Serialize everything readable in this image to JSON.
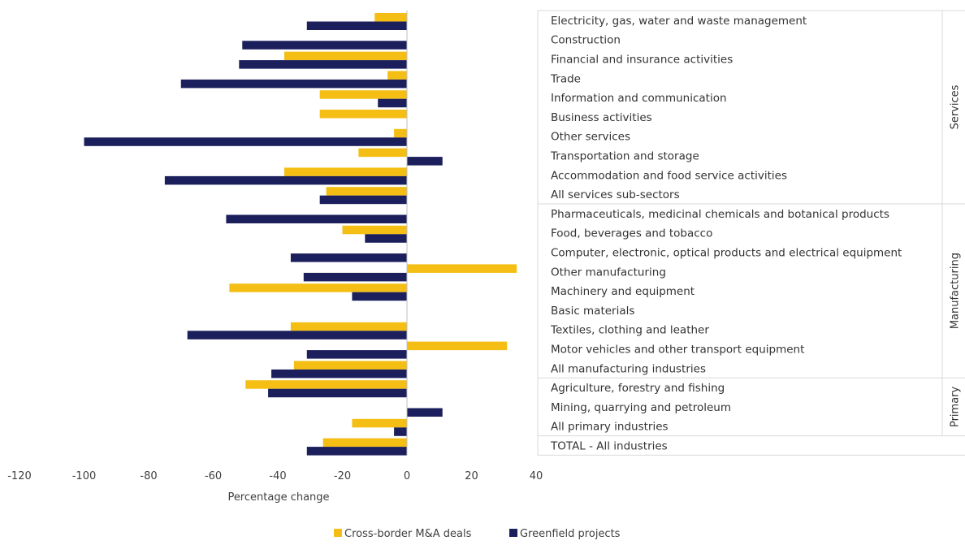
{
  "chart_data": {
    "type": "bar",
    "orientation": "horizontal",
    "xlabel": "Percentage change",
    "xlim": [
      -120,
      40
    ],
    "xticks": [
      "-120",
      "-100",
      "-80",
      "-60",
      "-40",
      "-20",
      "0",
      "20",
      "40"
    ],
    "categories": [
      "Electricity, gas, water and waste management",
      "Construction",
      "Financial and insurance activities",
      "Trade",
      "Information and communication",
      "Business activities",
      "Other services",
      "Transportation and storage",
      "Accommodation and food service activities",
      "All services sub-sectors",
      "Pharmaceuticals, medicinal chemicals and botanical products",
      "Food, beverages and tobacco",
      "Computer, electronic, optical products and electrical equipment",
      "Other manufacturing",
      "Machinery and equipment",
      "Basic materials",
      "Textiles, clothing and leather",
      "Motor vehicles and other transport equipment",
      "All manufacturing industries",
      "Agriculture, forestry and fishing",
      "Mining, quarrying and petroleum",
      "All primary industries",
      "TOTAL - All industries"
    ],
    "groups": [
      {
        "label": "Services",
        "start": 0,
        "end": 9
      },
      {
        "label": "Manufacturing",
        "start": 10,
        "end": 18
      },
      {
        "label": "Primary",
        "start": 19,
        "end": 21
      }
    ],
    "series": [
      {
        "name": "Cross-border M&A deals",
        "color": "#F5BE14",
        "values": [
          -10,
          0,
          -38,
          -6,
          -27,
          -27,
          -4,
          -15,
          -38,
          -25,
          0,
          -20,
          0,
          34,
          -55,
          0,
          -36,
          31,
          -35,
          -50,
          0,
          -17,
          -26
        ]
      },
      {
        "name": "Greenfield projects",
        "color": "#1B1F5C",
        "values": [
          -31,
          -51,
          -52,
          -70,
          -9,
          0,
          -100,
          11,
          -75,
          -27,
          -56,
          -13,
          -36,
          -32,
          -17,
          0,
          -68,
          -31,
          -42,
          -43,
          11,
          -4,
          -31
        ]
      }
    ],
    "legend_position": "bottom"
  }
}
